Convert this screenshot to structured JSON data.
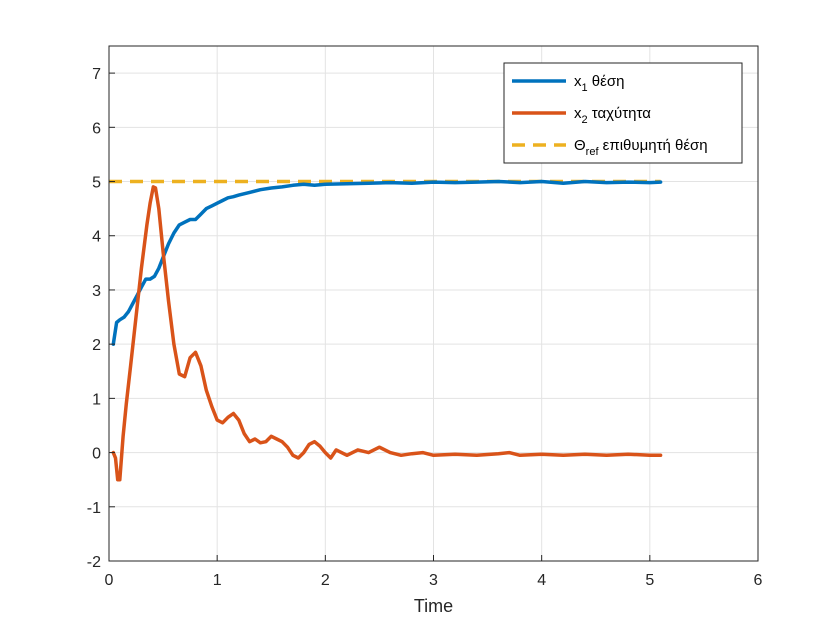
{
  "chart_data": {
    "type": "line",
    "xlabel": "Time",
    "ylabel": "",
    "title": "",
    "xlim": [
      0,
      6
    ],
    "ylim": [
      -2,
      7.5
    ],
    "xticks": [
      "0",
      "1",
      "2",
      "3",
      "4",
      "5",
      "6"
    ],
    "yticks": [
      "-2",
      "-1",
      "0",
      "1",
      "2",
      "3",
      "4",
      "5",
      "6",
      "7"
    ],
    "grid": true,
    "legend_position": "top-right",
    "series": [
      {
        "name": "x1 θέση",
        "legend_base": "x",
        "legend_sub": "1",
        "legend_rest": " θέση",
        "color": "#0072BD",
        "style": "solid",
        "x": [
          0.04,
          0.07,
          0.1,
          0.14,
          0.18,
          0.22,
          0.26,
          0.3,
          0.34,
          0.38,
          0.42,
          0.46,
          0.5,
          0.55,
          0.6,
          0.65,
          0.7,
          0.75,
          0.8,
          0.85,
          0.9,
          0.95,
          1.0,
          1.05,
          1.1,
          1.15,
          1.2,
          1.3,
          1.4,
          1.5,
          1.6,
          1.7,
          1.8,
          1.9,
          2.0,
          2.2,
          2.4,
          2.6,
          2.8,
          3.0,
          3.2,
          3.4,
          3.6,
          3.8,
          4.0,
          4.2,
          4.4,
          4.6,
          4.8,
          5.0,
          5.1
        ],
        "y": [
          2.0,
          2.4,
          2.45,
          2.5,
          2.6,
          2.75,
          2.9,
          3.05,
          3.2,
          3.2,
          3.25,
          3.4,
          3.6,
          3.85,
          4.05,
          4.2,
          4.25,
          4.3,
          4.3,
          4.4,
          4.5,
          4.55,
          4.6,
          4.65,
          4.7,
          4.72,
          4.75,
          4.8,
          4.85,
          4.88,
          4.9,
          4.93,
          4.95,
          4.93,
          4.95,
          4.96,
          4.97,
          4.98,
          4.97,
          4.99,
          4.98,
          4.99,
          5.0,
          4.98,
          5.0,
          4.97,
          5.0,
          4.98,
          4.99,
          4.98,
          4.99
        ]
      },
      {
        "name": "x2 ταχύτητα",
        "legend_base": "x",
        "legend_sub": "2",
        "legend_rest": " ταχύτητα",
        "color": "#D95319",
        "style": "solid",
        "x": [
          0.04,
          0.06,
          0.08,
          0.1,
          0.13,
          0.16,
          0.2,
          0.25,
          0.3,
          0.35,
          0.38,
          0.41,
          0.43,
          0.46,
          0.5,
          0.55,
          0.6,
          0.65,
          0.7,
          0.75,
          0.8,
          0.85,
          0.9,
          0.95,
          1.0,
          1.05,
          1.1,
          1.15,
          1.2,
          1.25,
          1.3,
          1.35,
          1.4,
          1.45,
          1.5,
          1.55,
          1.6,
          1.65,
          1.7,
          1.75,
          1.8,
          1.85,
          1.9,
          1.95,
          2.0,
          2.05,
          2.1,
          2.2,
          2.3,
          2.4,
          2.5,
          2.6,
          2.7,
          2.8,
          2.9,
          3.0,
          3.2,
          3.4,
          3.6,
          3.7,
          3.8,
          4.0,
          4.2,
          4.4,
          4.6,
          4.8,
          5.0,
          5.1
        ],
        "y": [
          0.0,
          -0.1,
          -0.5,
          -0.5,
          0.3,
          0.9,
          1.6,
          2.5,
          3.4,
          4.2,
          4.6,
          4.9,
          4.88,
          4.5,
          3.7,
          2.8,
          2.0,
          1.45,
          1.4,
          1.75,
          1.85,
          1.6,
          1.15,
          0.85,
          0.6,
          0.55,
          0.65,
          0.72,
          0.6,
          0.35,
          0.2,
          0.25,
          0.18,
          0.2,
          0.3,
          0.25,
          0.2,
          0.1,
          -0.05,
          -0.1,
          0.0,
          0.15,
          0.2,
          0.12,
          0.0,
          -0.1,
          0.05,
          -0.05,
          0.05,
          0.0,
          0.1,
          0.0,
          -0.05,
          -0.02,
          0.0,
          -0.05,
          -0.03,
          -0.05,
          -0.02,
          0.0,
          -0.05,
          -0.03,
          -0.05,
          -0.03,
          -0.05,
          -0.03,
          -0.05,
          -0.05
        ]
      },
      {
        "name": "Θref επιθυμητή θέση",
        "legend_base": "Θ",
        "legend_sub": "ref",
        "legend_rest": " επιθυμητή θέση",
        "color": "#EDB120",
        "style": "dashed",
        "x": [
          0,
          5.1
        ],
        "y": [
          5,
          5
        ]
      }
    ]
  }
}
